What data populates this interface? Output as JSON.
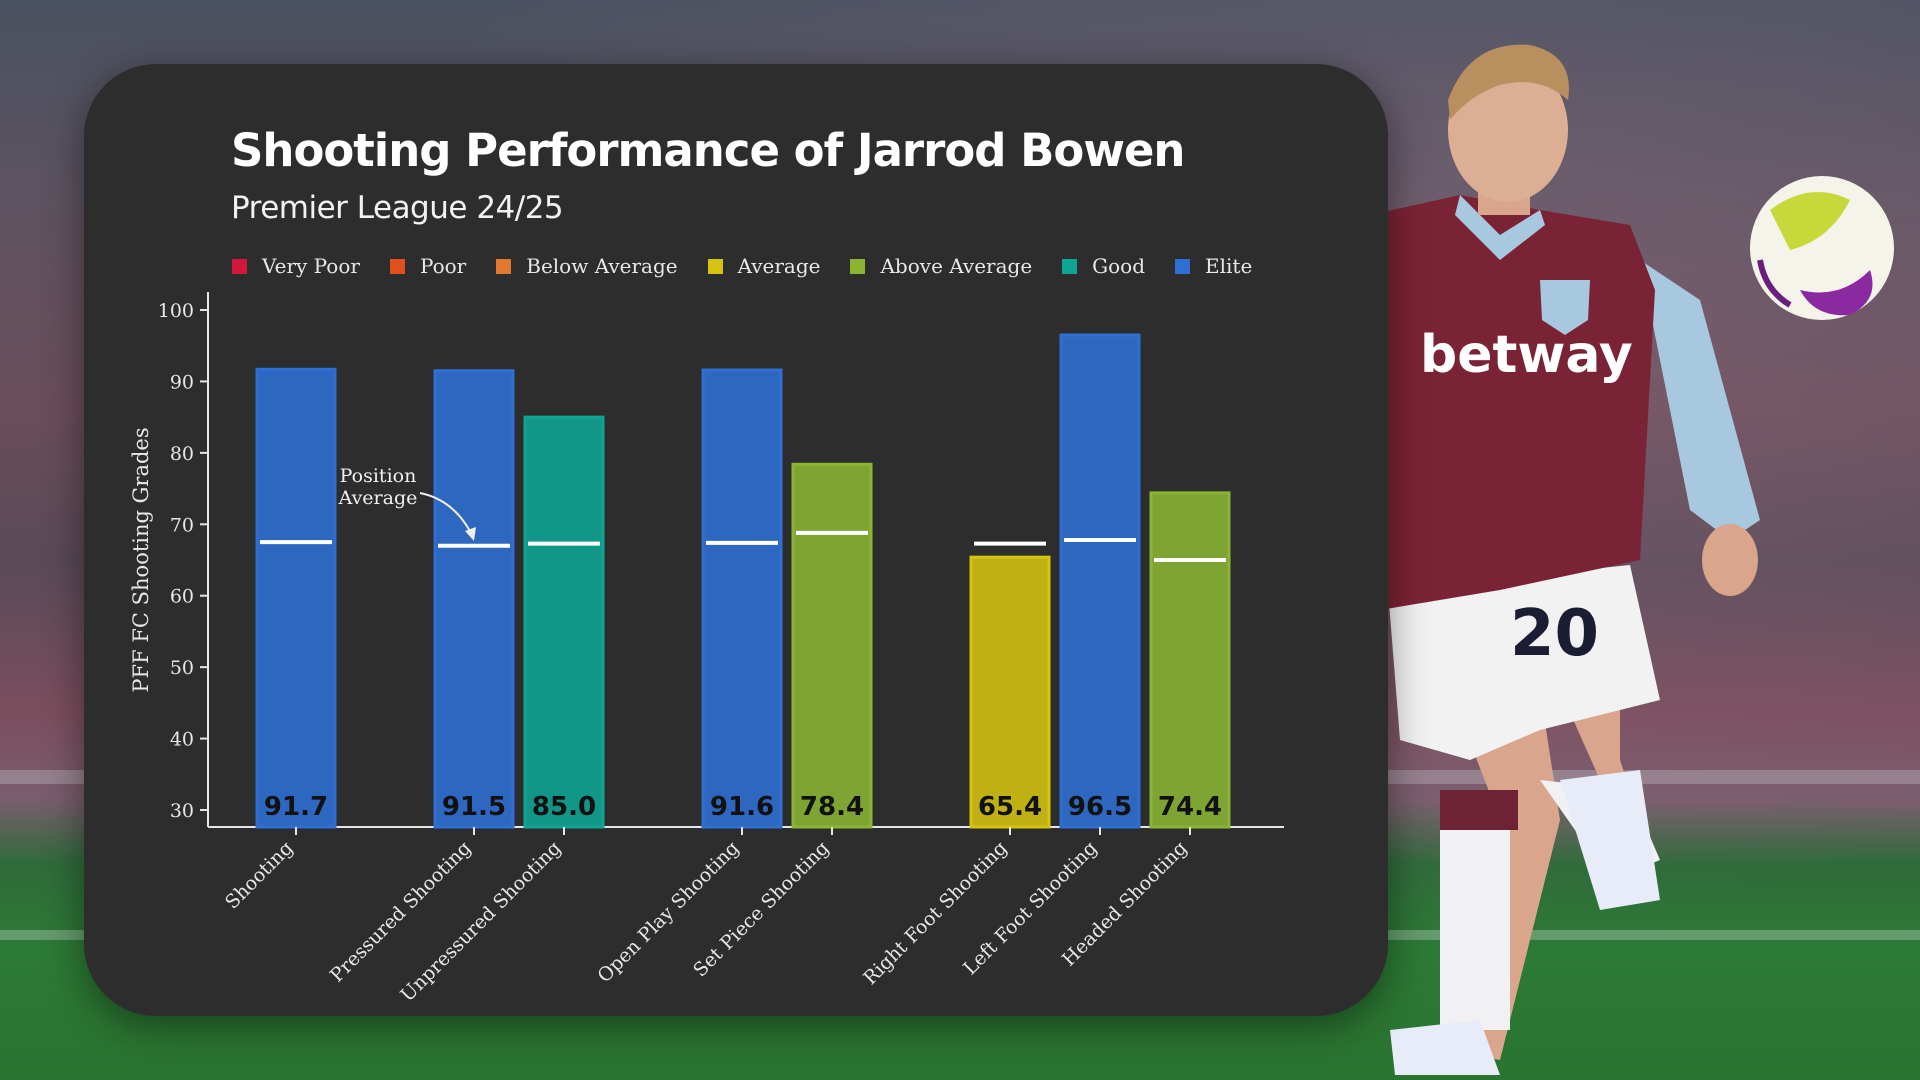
{
  "chart_data": {
    "type": "bar",
    "title": "Shooting Performance of Jarrod Bowen",
    "subtitle": "Premier League 24/25",
    "ylabel": "PFF FC Shooting Grades",
    "xlabel": "",
    "ylim": [
      30,
      100
    ],
    "yticks": [
      30,
      40,
      50,
      60,
      70,
      80,
      90,
      100
    ],
    "grid": false,
    "legend_position": "top",
    "legend": [
      {
        "label": "Very Poor",
        "color": "#d2173c"
      },
      {
        "label": "Poor",
        "color": "#e0501c"
      },
      {
        "label": "Below Average",
        "color": "#e07a2e"
      },
      {
        "label": "Average",
        "color": "#d4c410"
      },
      {
        "label": "Above Average",
        "color": "#8ab534"
      },
      {
        "label": "Good",
        "color": "#0fa594"
      },
      {
        "label": "Elite",
        "color": "#2f6fd4"
      }
    ],
    "categories": [
      "Shooting",
      "Pressured Shooting",
      "Unpressured Shooting",
      "Open Play Shooting",
      "Set Piece Shooting",
      "Right Foot Shooting",
      "Left Foot Shooting",
      "Headed Shooting"
    ],
    "values": [
      91.7,
      91.5,
      85.0,
      91.6,
      78.4,
      65.4,
      96.5,
      74.4
    ],
    "value_labels": [
      "91.7",
      "91.5",
      "85.0",
      "91.6",
      "78.4",
      "65.4",
      "96.5",
      "74.4"
    ],
    "ratings": [
      "Elite",
      "Elite",
      "Good",
      "Elite",
      "Above Average",
      "Average",
      "Elite",
      "Above Average"
    ],
    "groups": [
      0,
      1,
      1,
      2,
      2,
      3,
      3,
      3
    ],
    "position_average": [
      67.5,
      67.0,
      67.3,
      67.4,
      68.8,
      67.3,
      67.8,
      65.0
    ],
    "annotation": "Position\nAverage",
    "annotation_lines": [
      "Position",
      "Average"
    ]
  },
  "colors": {
    "card_background": "#2d2d2d",
    "axis": "#e6e6e6",
    "bar_text": "#111111"
  },
  "photo": {
    "jersey_sponsor": "betway",
    "shirt_number": "20"
  }
}
